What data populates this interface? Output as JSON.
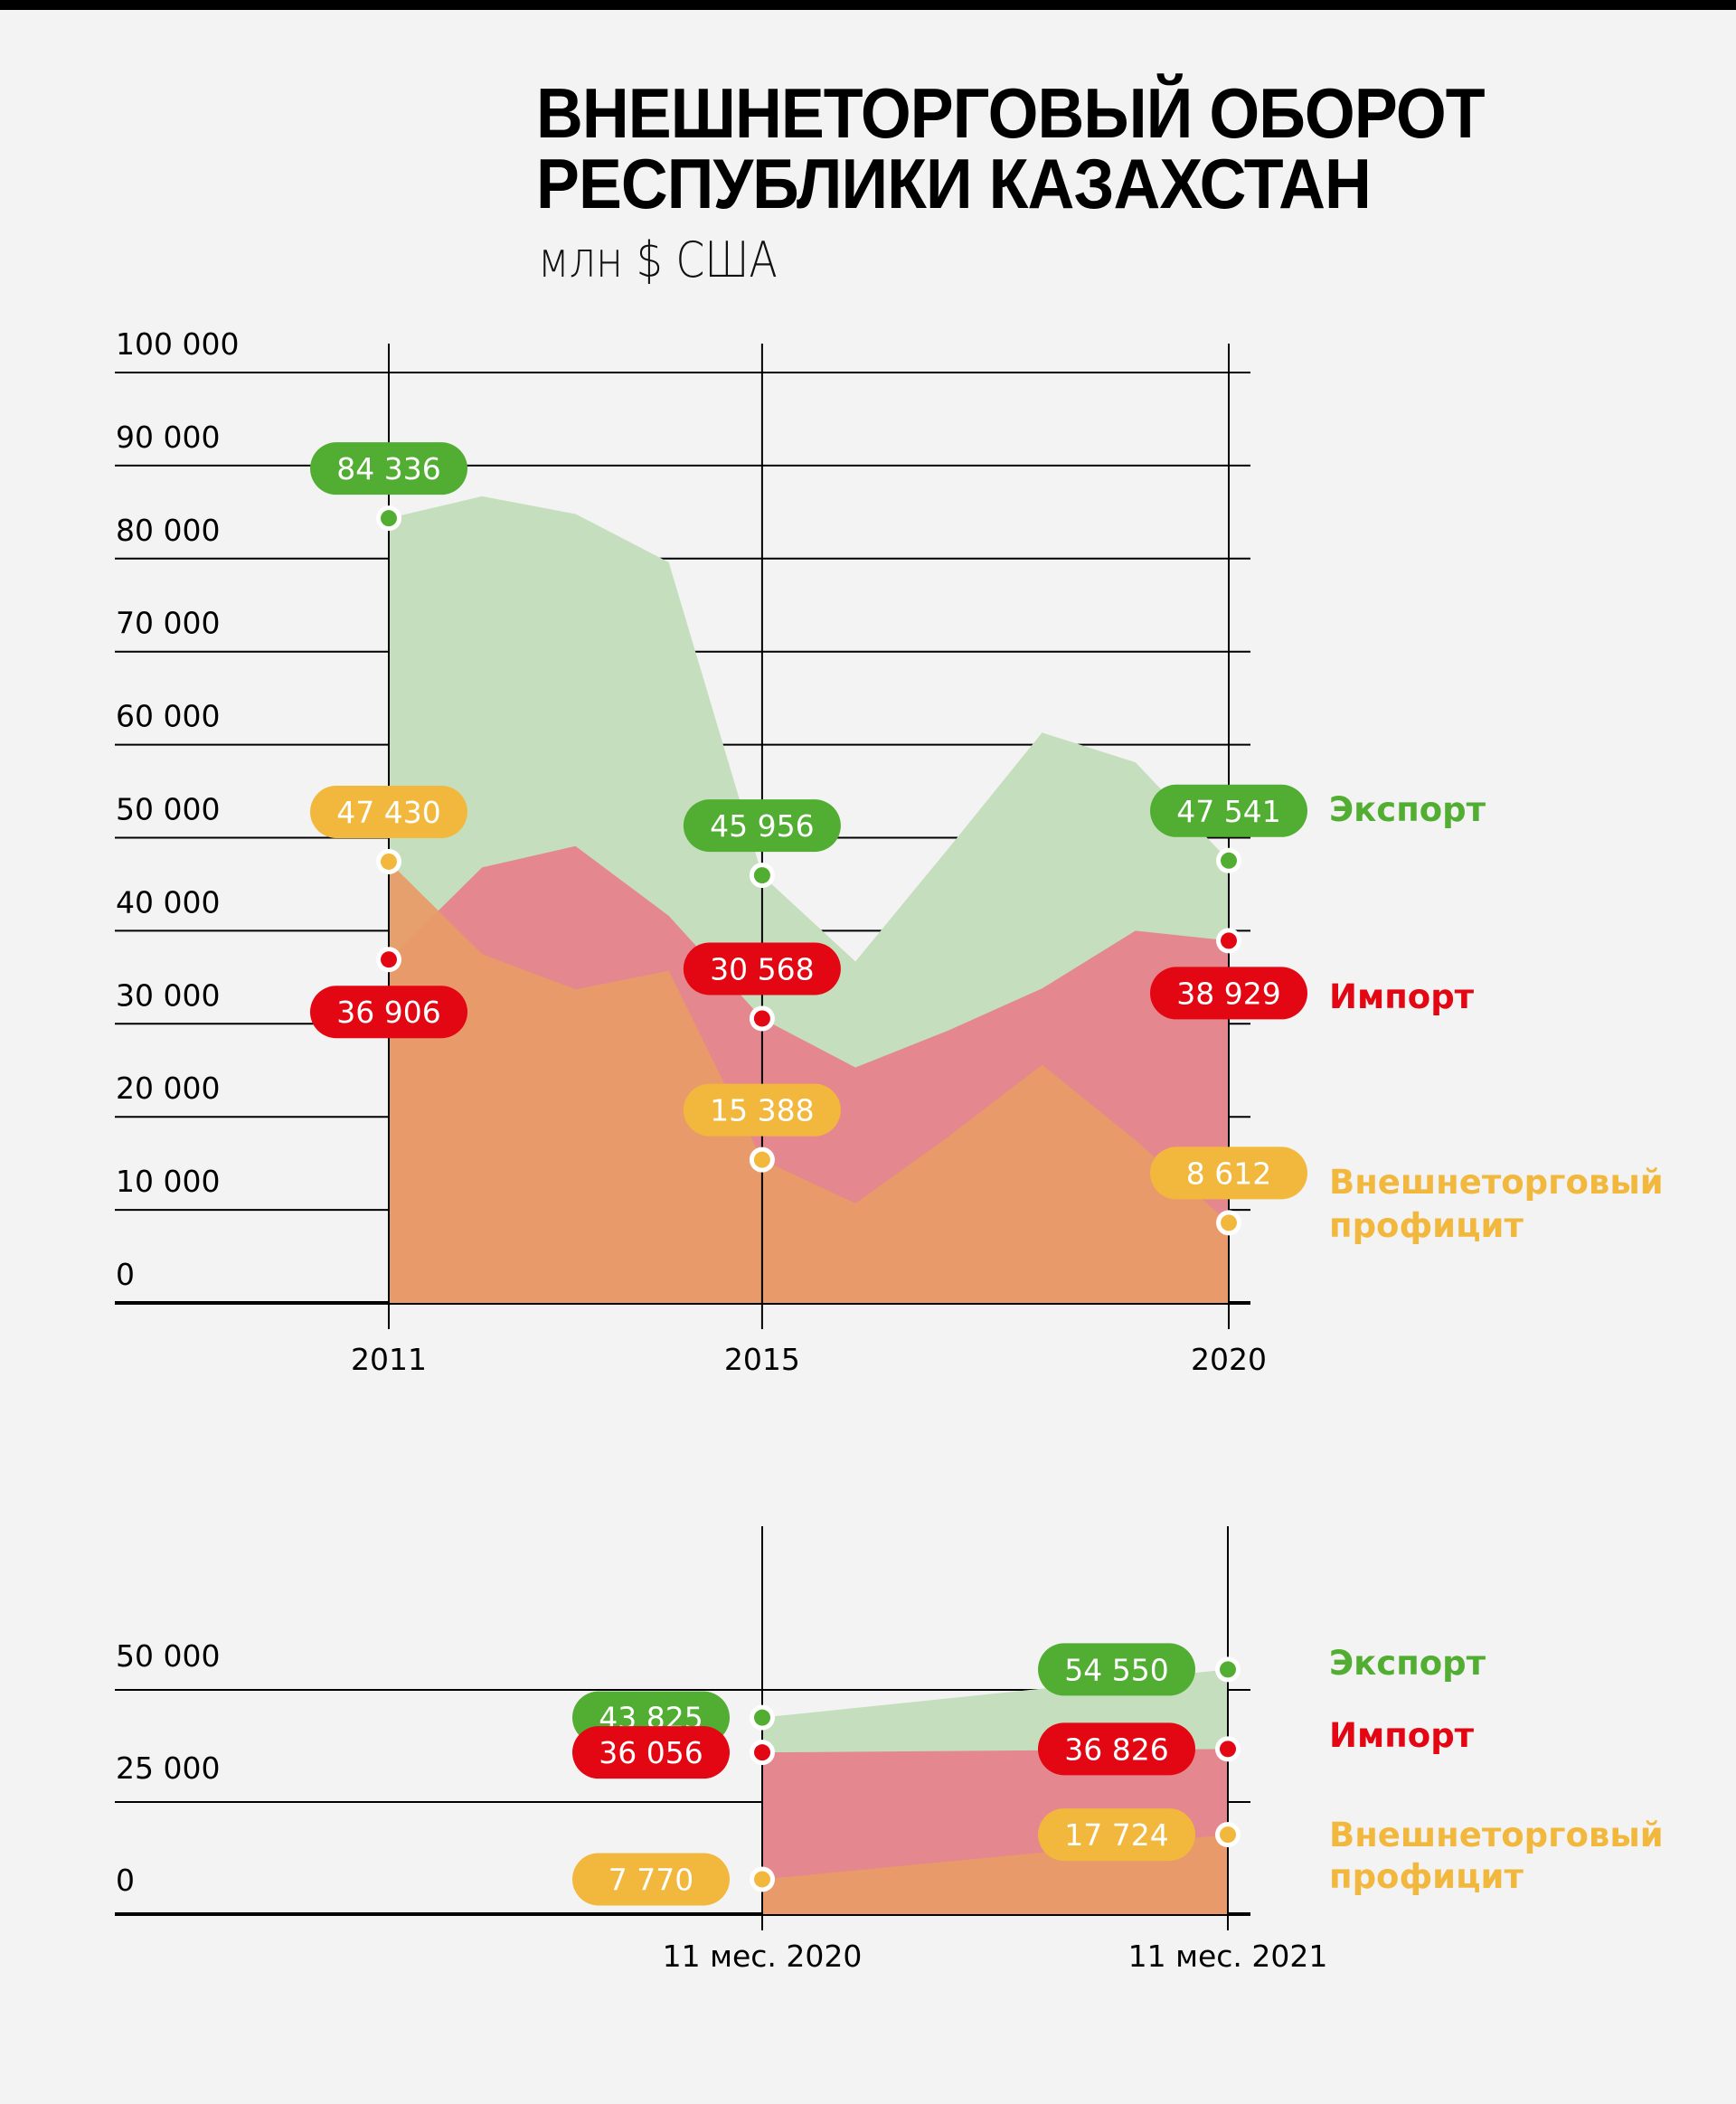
{
  "title": {
    "line1": "ВНЕШНЕТОРГОВЫЙ ОБОРОТ",
    "line2": "РЕСПУБЛИКИ КАЗАХСТАН",
    "subtitle": "млн $ США"
  },
  "colors": {
    "export": "#52ae32",
    "import": "#e30613",
    "surplus": "#f2b83d",
    "export_area": "#c5dfbe",
    "import_area": "#e6808a",
    "surplus_area": "#e89b67",
    "background": "#f3f3f3"
  },
  "legend": {
    "export": "Экспорт",
    "import": "Импорт",
    "surplus_line1": "Внешнеторговый",
    "surplus_line2": "профицит"
  },
  "chart_data": [
    {
      "type": "area",
      "title": "Внешнеторговый оборот Республики Казахстан",
      "ylabel": "млн $ США",
      "xlabel": "",
      "ylim": [
        0,
        100000
      ],
      "yticks": [
        0,
        10000,
        20000,
        30000,
        40000,
        50000,
        60000,
        70000,
        80000,
        90000,
        100000
      ],
      "ytick_labels": [
        "0",
        "10 000",
        "20 000",
        "30 000",
        "40 000",
        "50 000",
        "60 000",
        "70 000",
        "80 000",
        "90 000",
        "100 000"
      ],
      "x": [
        2011,
        2012,
        2013,
        2014,
        2015,
        2016,
        2017,
        2018,
        2019,
        2020
      ],
      "xticks": [
        2011,
        2015,
        2020
      ],
      "xtick_labels": [
        "2011",
        "2015",
        "2020"
      ],
      "grid": true,
      "legend_position": "right",
      "series": [
        {
          "key": "export",
          "name": "Экспорт",
          "values": [
            84336,
            86700,
            84800,
            79600,
            45956,
            36700,
            48900,
            61300,
            58100,
            47541
          ],
          "labeled": [
            {
              "x": 2011,
              "value": 84336,
              "label": "84 336",
              "placement": "above"
            },
            {
              "x": 2015,
              "value": 45956,
              "label": "45 956",
              "placement": "above"
            },
            {
              "x": 2020,
              "value": 47541,
              "label": "47 541",
              "placement": "above"
            }
          ]
        },
        {
          "key": "import",
          "name": "Импорт",
          "values": [
            36906,
            46800,
            49100,
            41600,
            30568,
            25300,
            29300,
            33800,
            40000,
            38929
          ],
          "labeled": [
            {
              "x": 2011,
              "value": 36906,
              "label": "36 906",
              "placement": "below"
            },
            {
              "x": 2015,
              "value": 30568,
              "label": "30 568",
              "placement": "above"
            },
            {
              "x": 2020,
              "value": 38929,
              "label": "38 929",
              "placement": "below"
            }
          ]
        },
        {
          "key": "surplus",
          "name": "Внешнеторговый профицит",
          "values": [
            47430,
            37500,
            33700,
            35700,
            15388,
            10700,
            17900,
            25600,
            17500,
            8612
          ],
          "labeled": [
            {
              "x": 2011,
              "value": 47430,
              "label": "47 430",
              "placement": "above"
            },
            {
              "x": 2015,
              "value": 15388,
              "label": "15 388",
              "placement": "above"
            },
            {
              "x": 2020,
              "value": 8612,
              "label": "8 612",
              "placement": "above"
            }
          ]
        }
      ]
    },
    {
      "type": "area",
      "title": "",
      "ylim": [
        0,
        50000
      ],
      "yticks": [
        0,
        25000,
        50000
      ],
      "ytick_labels": [
        "0",
        "25 000",
        "50 000"
      ],
      "categories": [
        "11 мес. 2020",
        "11 мес. 2021"
      ],
      "grid": true,
      "legend_position": "right",
      "series": [
        {
          "key": "export",
          "name": "Экспорт",
          "values": [
            43825,
            54550
          ],
          "labels": [
            "43 825",
            "54 550"
          ]
        },
        {
          "key": "import",
          "name": "Импорт",
          "values": [
            36056,
            36826
          ],
          "labels": [
            "36 056",
            "36 826"
          ]
        },
        {
          "key": "surplus",
          "name": "Внешнеторговый профицит",
          "values": [
            7770,
            17724
          ],
          "labels": [
            "7 770",
            "17 724"
          ]
        }
      ]
    }
  ]
}
